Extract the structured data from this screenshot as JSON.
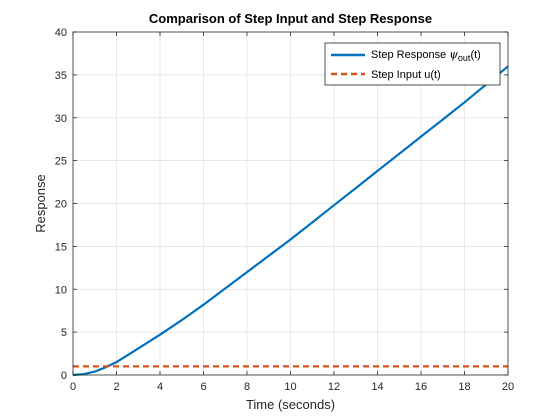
{
  "chart_data": {
    "type": "line",
    "title": "Comparison of Step Input and Step Response",
    "xlabel": "Time (seconds)",
    "ylabel": "Response",
    "xlim": [
      0,
      20
    ],
    "ylim": [
      0,
      40
    ],
    "xticks": [
      0,
      2,
      4,
      6,
      8,
      10,
      12,
      14,
      16,
      18,
      20
    ],
    "yticks": [
      0,
      5,
      10,
      15,
      20,
      25,
      30,
      35,
      40
    ],
    "xtick_labels": [
      "0",
      "2",
      "4",
      "6",
      "8",
      "10",
      "12",
      "14",
      "16",
      "18",
      "20"
    ],
    "ytick_labels": [
      "0",
      "5",
      "10",
      "15",
      "20",
      "25",
      "30",
      "35",
      "40"
    ],
    "grid": true,
    "legend_position": "top-right",
    "series": [
      {
        "name": "Step Response ψout(t)",
        "legend_main": "Step Response ",
        "legend_symbol": "ψ",
        "legend_sub": "out",
        "legend_suffix": "(t)",
        "color": "#0072BD",
        "style": "solid",
        "x": [
          0,
          0.5,
          1.0,
          1.5,
          2.0,
          2.5,
          3.0,
          3.5,
          4.0,
          5.0,
          6.0,
          7.0,
          8.0,
          9.0,
          10.0,
          11.0,
          12.0,
          13.0,
          14.0,
          15.0,
          16.0,
          17.0,
          18.0,
          19.0,
          20.0
        ],
        "y": [
          0,
          0.1,
          0.4,
          0.9,
          1.5,
          2.3,
          3.1,
          3.9,
          4.7,
          6.4,
          8.2,
          10.1,
          12.0,
          13.9,
          15.8,
          17.8,
          19.8,
          21.8,
          23.8,
          25.8,
          27.8,
          29.8,
          31.8,
          33.9,
          36.0
        ]
      },
      {
        "name": "Step Input u(t)",
        "color": "#D95319",
        "style": "dashed",
        "x": [
          0,
          20
        ],
        "y": [
          1,
          1
        ]
      }
    ]
  }
}
